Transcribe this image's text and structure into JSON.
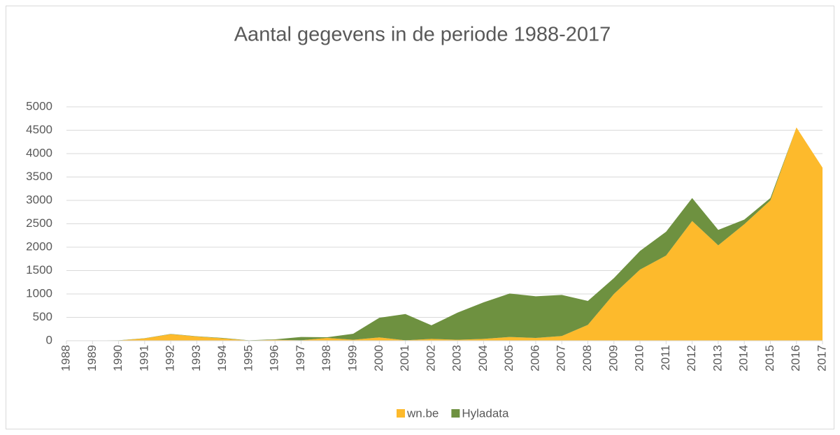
{
  "chart_data": {
    "type": "area",
    "stacked": true,
    "title": "Aantal gegevens in de periode 1988-2017",
    "categories": [
      "1988",
      "1989",
      "1990",
      "1991",
      "1992",
      "1993",
      "1994",
      "1995",
      "1996",
      "1997",
      "1998",
      "1999",
      "2000",
      "2001",
      "2002",
      "2003",
      "2004",
      "2005",
      "2006",
      "2007",
      "2008",
      "2009",
      "2010",
      "2011",
      "2012",
      "2013",
      "2014",
      "2015",
      "2016",
      "2017"
    ],
    "series": [
      {
        "name": "wn.be",
        "color": "#fdba2c",
        "values": [
          0,
          0,
          5,
          50,
          140,
          90,
          50,
          5,
          20,
          10,
          60,
          20,
          70,
          10,
          40,
          20,
          40,
          80,
          60,
          100,
          340,
          1000,
          1520,
          1820,
          2560,
          2040,
          2490,
          3000,
          4560,
          3700
        ]
      },
      {
        "name": "Hyladata",
        "color": "#6e9140",
        "values": [
          5,
          5,
          5,
          5,
          5,
          5,
          10,
          5,
          10,
          70,
          15,
          130,
          420,
          560,
          290,
          580,
          780,
          930,
          890,
          880,
          510,
          340,
          400,
          510,
          490,
          330,
          100,
          50,
          0,
          0
        ]
      }
    ],
    "ylim": [
      0,
      5000
    ],
    "yticks": [
      0,
      500,
      1000,
      1500,
      2000,
      2500,
      3000,
      3500,
      4000,
      4500,
      5000
    ],
    "grid": true,
    "legend": "bottom"
  }
}
